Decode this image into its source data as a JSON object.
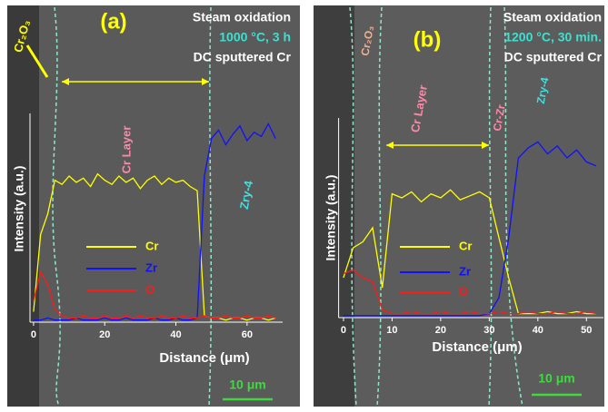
{
  "chart_data": [
    {
      "type": "line",
      "label": "(a)",
      "conditions": [
        "Steam oxidation",
        "1000 °C, 3 h",
        "DC sputtered Cr"
      ],
      "regions": [
        "Cr₂O₃",
        "Cr Layer",
        "Zry-4"
      ],
      "ylabel": "Intensity (a.u.)",
      "xlabel": "Distance (μm)",
      "scale_bar": "10 μm",
      "x": [
        0,
        2,
        4,
        6,
        8,
        10,
        12,
        14,
        16,
        18,
        20,
        22,
        24,
        26,
        28,
        30,
        32,
        34,
        36,
        38,
        40,
        42,
        44,
        46,
        48,
        50,
        52,
        54,
        56,
        58,
        60,
        62,
        64,
        66,
        68
      ],
      "xlim": [
        -1,
        70
      ],
      "xticks": [
        0,
        20,
        40,
        60
      ],
      "ylim": [
        0,
        100
      ],
      "series": [
        {
          "name": "Cr",
          "color": "#ffff00",
          "values": [
            5,
            42,
            52,
            68,
            66,
            70,
            67,
            69,
            65,
            71,
            68,
            66,
            70,
            67,
            69,
            64,
            68,
            70,
            66,
            69,
            67,
            68,
            65,
            63,
            3,
            2,
            2,
            1,
            2,
            2,
            1,
            2,
            2,
            1,
            2
          ]
        },
        {
          "name": "Zr",
          "color": "#1010ff",
          "values": [
            1,
            1,
            2,
            1,
            1,
            1,
            2,
            1,
            1,
            1,
            2,
            1,
            1,
            2,
            1,
            1,
            1,
            2,
            1,
            1,
            2,
            1,
            1,
            2,
            70,
            88,
            92,
            85,
            90,
            94,
            87,
            91,
            89,
            95,
            88
          ]
        },
        {
          "name": "O",
          "color": "#ff1a1a",
          "values": [
            10,
            24,
            18,
            6,
            3,
            2,
            2,
            3,
            2,
            2,
            3,
            2,
            2,
            3,
            2,
            3,
            2,
            2,
            3,
            2,
            2,
            3,
            2,
            2,
            3,
            2,
            2,
            3,
            2,
            2,
            3,
            2,
            2,
            3,
            2
          ]
        }
      ]
    },
    {
      "type": "line",
      "label": "(b)",
      "conditions": [
        "Steam oxidation",
        "1200 °C, 30 min.",
        "DC sputtered Cr"
      ],
      "regions": [
        "Cr₂O₃",
        "Cr Layer",
        "Cr-Zr",
        "Zry-4"
      ],
      "ylabel": "Intensity (a.u.)",
      "xlabel": "Distance (μm)",
      "scale_bar": "10 μm",
      "x": [
        0,
        2,
        4,
        6,
        8,
        10,
        12,
        14,
        16,
        18,
        20,
        22,
        24,
        26,
        28,
        30,
        32,
        34,
        36,
        38,
        40,
        42,
        44,
        46,
        48,
        50,
        52
      ],
      "xlim": [
        -1,
        53.5
      ],
      "xticks": [
        0,
        10,
        20,
        30,
        40,
        50
      ],
      "ylim": [
        0,
        100
      ],
      "series": [
        {
          "name": "Cr",
          "color": "#ffff00",
          "values": [
            20,
            35,
            38,
            45,
            15,
            62,
            60,
            63,
            58,
            62,
            60,
            64,
            59,
            61,
            63,
            60,
            40,
            20,
            2,
            2,
            2,
            3,
            2,
            2,
            3,
            2,
            2
          ]
        },
        {
          "name": "Zr",
          "color": "#1010ff",
          "values": [
            1,
            1,
            1,
            1,
            1,
            1,
            1,
            1,
            1,
            1,
            1,
            1,
            1,
            1,
            1,
            2,
            10,
            40,
            80,
            85,
            88,
            82,
            86,
            80,
            84,
            78,
            76
          ]
        },
        {
          "name": "O",
          "color": "#ff1a1a",
          "values": [
            22,
            24,
            20,
            18,
            4,
            2,
            2,
            3,
            2,
            2,
            3,
            2,
            2,
            3,
            2,
            2,
            3,
            2,
            2,
            3,
            2,
            2,
            3,
            2,
            2,
            3,
            2
          ]
        }
      ]
    }
  ]
}
